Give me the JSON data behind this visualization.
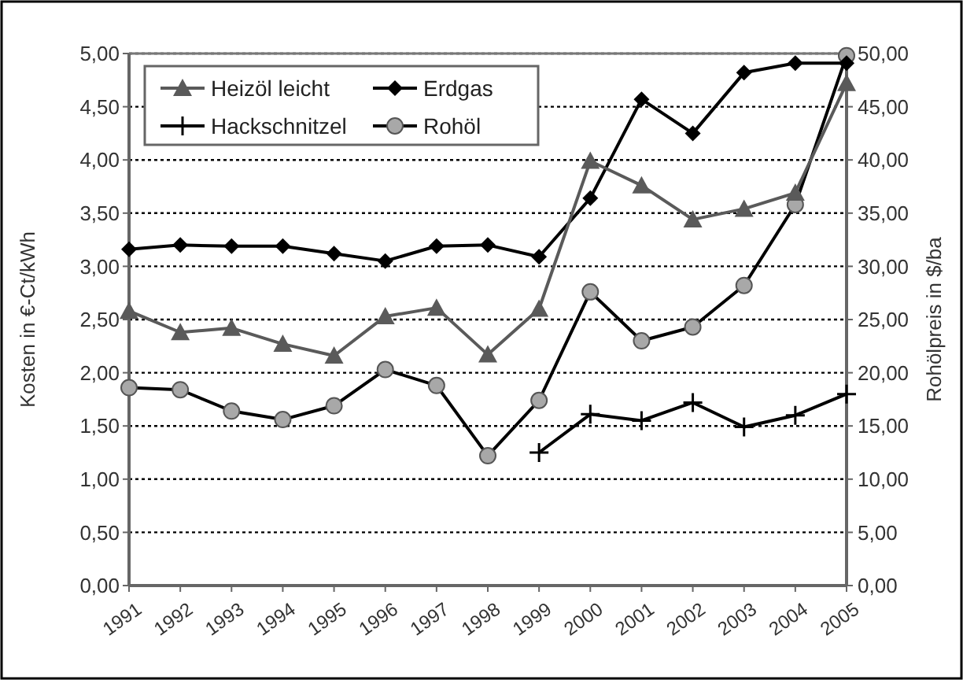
{
  "chart_data": {
    "type": "line",
    "categories": [
      "1991",
      "1992",
      "1993",
      "1994",
      "1995",
      "1996",
      "1997",
      "1998",
      "1999",
      "2000",
      "2001",
      "2002",
      "2003",
      "2004",
      "2005"
    ],
    "series": [
      {
        "name": "Heizöl leicht",
        "color": "#5a5a5a",
        "marker": "triangle",
        "values": [
          2.58,
          2.38,
          2.42,
          2.27,
          2.16,
          2.53,
          2.61,
          2.17,
          2.6,
          3.99,
          3.76,
          3.44,
          3.54,
          3.69,
          4.72
        ]
      },
      {
        "name": "Erdgas",
        "color": "#000000",
        "marker": "diamond",
        "values": [
          3.16,
          3.2,
          3.19,
          3.19,
          3.12,
          3.05,
          3.19,
          3.2,
          3.09,
          3.64,
          4.57,
          4.25,
          4.82,
          4.91,
          4.91
        ]
      },
      {
        "name": "Hackschnitzel",
        "color": "#000000",
        "marker": "cross",
        "values": [
          null,
          null,
          null,
          null,
          null,
          null,
          null,
          null,
          1.25,
          1.61,
          1.55,
          1.72,
          1.49,
          1.6,
          1.8
        ]
      },
      {
        "name": "Rohöl",
        "color": "#000000",
        "marker": "circle",
        "axis": "y2",
        "values": [
          18.6,
          18.4,
          16.4,
          15.6,
          16.9,
          20.3,
          18.8,
          12.2,
          17.4,
          27.6,
          23.0,
          24.3,
          28.2,
          35.8,
          49.8
        ]
      }
    ],
    "ylabel": "Kosten in  €-Ct/kWh",
    "y2label": "Rohölpreis in $/ba",
    "ylim": [
      0,
      5
    ],
    "yticks": [
      {
        "value": 0,
        "label": "0,00"
      },
      {
        "value": 0.5,
        "label": "0,50"
      },
      {
        "value": 1,
        "label": "1,00"
      },
      {
        "value": 1.5,
        "label": "1,50"
      },
      {
        "value": 2,
        "label": "2,00"
      },
      {
        "value": 2.5,
        "label": "2,50"
      },
      {
        "value": 3,
        "label": "3,00"
      },
      {
        "value": 3.5,
        "label": "3,50"
      },
      {
        "value": 4,
        "label": "4,00"
      },
      {
        "value": 4.5,
        "label": "4,50"
      },
      {
        "value": 5,
        "label": "5,00"
      }
    ],
    "y2lim": [
      0,
      50
    ],
    "y2ticks": [
      {
        "value": 0,
        "label": "0,00"
      },
      {
        "value": 5,
        "label": "5,00"
      },
      {
        "value": 10,
        "label": "10,00"
      },
      {
        "value": 15,
        "label": "15,00"
      },
      {
        "value": 20,
        "label": "20,00"
      },
      {
        "value": 25,
        "label": "25,00"
      },
      {
        "value": 30,
        "label": "30,00"
      },
      {
        "value": 35,
        "label": "35,00"
      },
      {
        "value": 40,
        "label": "40,00"
      },
      {
        "value": 45,
        "label": "45,00"
      },
      {
        "value": 50,
        "label": "50,00"
      }
    ],
    "grid": "y",
    "legend": "top left",
    "line_style": "solid"
  }
}
